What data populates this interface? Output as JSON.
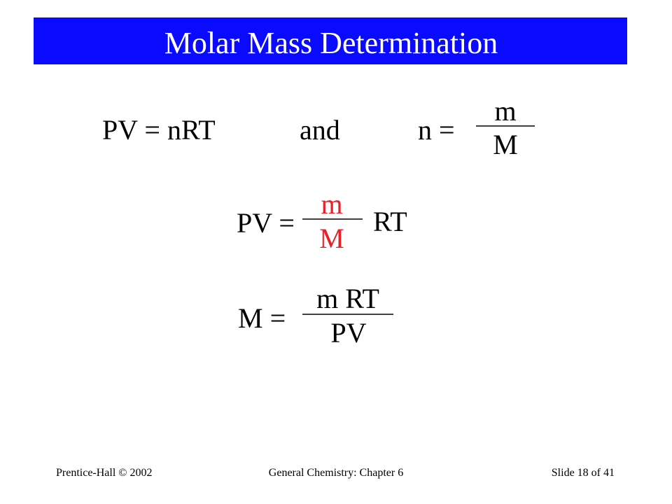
{
  "header": {
    "title": "Molar Mass Determination"
  },
  "equation_1": {
    "left": "PV = nRT",
    "connector": "and",
    "lhs": "n =",
    "numerator": "m",
    "denominator": "M"
  },
  "equation_2": {
    "lhs": "PV =",
    "numerator": "m",
    "denominator": "M",
    "rhs": "RT"
  },
  "equation_3": {
    "lhs": "M =",
    "numerator": "m RT",
    "denominator": "PV"
  },
  "footer": {
    "left": "Prentice-Hall © 2002",
    "center": "General Chemistry: Chapter 6",
    "right": "Slide 18 of 41"
  }
}
